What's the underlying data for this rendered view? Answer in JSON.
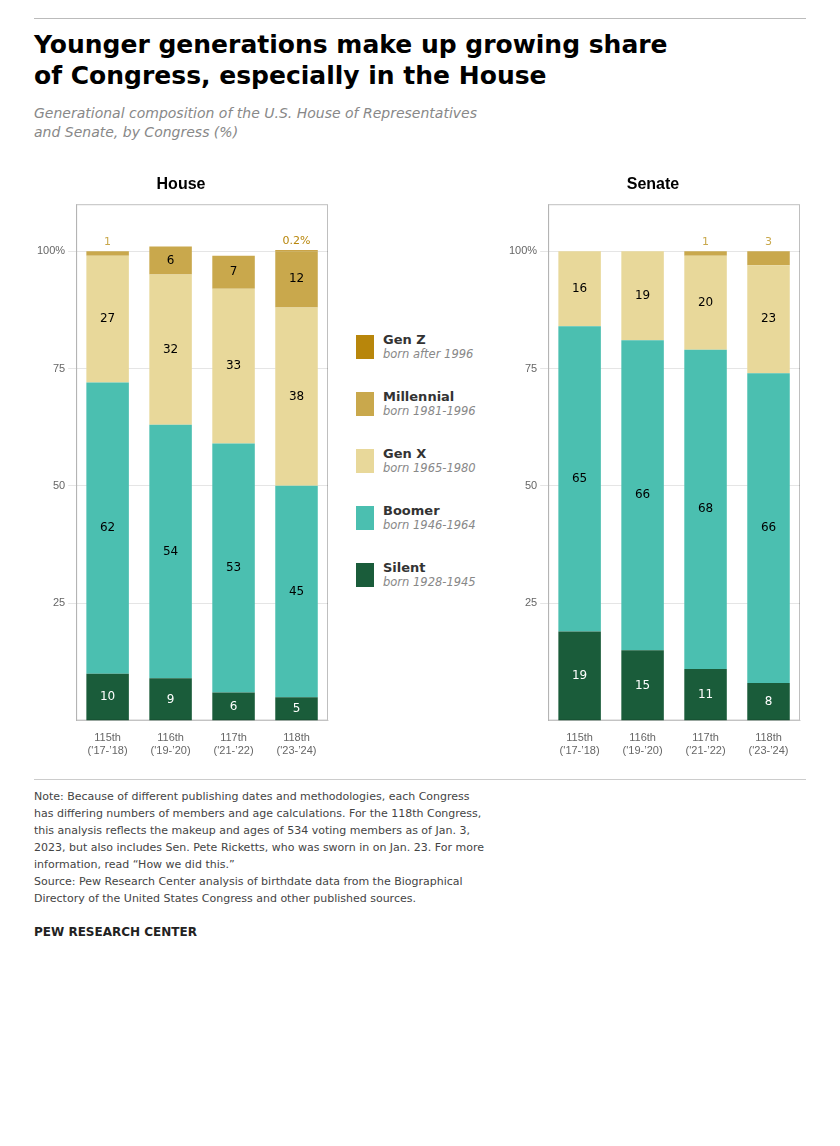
{
  "title": "Younger generations make up growing share\nof Congress, especially in the House",
  "subtitle": "Generational composition of the U.S. House of Representatives\nand Senate, by Congress (%)",
  "legend_entries": [
    {
      "name": "Gen Z",
      "sublabel": "born after 1996"
    },
    {
      "name": "Millennial",
      "sublabel": "born 1981-1996"
    },
    {
      "name": "Gen X",
      "sublabel": "born 1965-1980"
    },
    {
      "name": "Boomer",
      "sublabel": "born 1946-1964"
    },
    {
      "name": "Silent",
      "sublabel": "born 1928-1945"
    }
  ],
  "notes": [
    "Note: Because of different publishing dates and methodologies, each Congress",
    "has differing numbers of members and age calculations. For the 118th Congress,",
    "this analysis reflects the makeup and ages of 534 voting members as of Jan. 3,",
    "2023, but also includes Sen. Pete Ricketts, who was sworn in on Jan. 23. For more",
    "information, read “How we did this.”",
    "Source: Pew Research Center analysis of birthdate data from the Biographical",
    "Directory of the United States Congress and other published sources."
  ],
  "source": "PEW RESEARCH CENTER",
  "chart_data": [
    {
      "type": "bar",
      "title": "House",
      "stacked": true,
      "grid": true,
      "data_labels": true,
      "categories": [
        "115th\n('17-’18)",
        "116th\n('19-’20)",
        "117th\n('21-’22)",
        "118th\n('23-’24)"
      ],
      "ylim": [
        0,
        110
      ],
      "yticks": [
        25,
        50,
        75,
        {
          "value": 100,
          "label": "100%"
        }
      ],
      "series": [
        {
          "name": "Silent",
          "color": "#1a5c3a",
          "values": [
            10,
            9,
            6,
            5
          ]
        },
        {
          "name": "Boomer",
          "color": "#4bbfb0",
          "values": [
            62,
            54,
            53,
            45
          ]
        },
        {
          "name": "Gen X",
          "color": "#e8d89a",
          "values": [
            27,
            32,
            33,
            38
          ]
        },
        {
          "name": "Millennial",
          "color": "#c9a84c",
          "values": [
            1,
            6,
            7,
            12
          ]
        },
        {
          "name": "Gen Z",
          "color": "#b8860b",
          "values": [
            0,
            0,
            0,
            0.2
          ],
          "value_labels": [
            null,
            null,
            null,
            "0.2%"
          ]
        }
      ]
    },
    {
      "type": "bar",
      "title": "Senate",
      "stacked": true,
      "grid": true,
      "data_labels": true,
      "categories": [
        "115th\n('17-’18)",
        "116th\n('19-’20)",
        "117th\n('21-’22)",
        "118th\n('23-’24)"
      ],
      "ylim": [
        0,
        110
      ],
      "yticks": [
        25,
        50,
        75,
        {
          "value": 100,
          "label": "100%"
        }
      ],
      "series": [
        {
          "name": "Silent",
          "color": "#1a5c3a",
          "values": [
            19,
            15,
            11,
            8
          ]
        },
        {
          "name": "Boomer",
          "color": "#4bbfb0",
          "values": [
            65,
            66,
            68,
            66
          ]
        },
        {
          "name": "Gen X",
          "color": "#e8d89a",
          "values": [
            16,
            19,
            20,
            23
          ]
        },
        {
          "name": "Millennial",
          "color": "#c9a84c",
          "values": [
            0,
            0,
            1,
            3
          ]
        },
        {
          "name": "Gen Z",
          "color": "#b8860b",
          "values": [
            0,
            0,
            0,
            0
          ]
        }
      ]
    }
  ]
}
